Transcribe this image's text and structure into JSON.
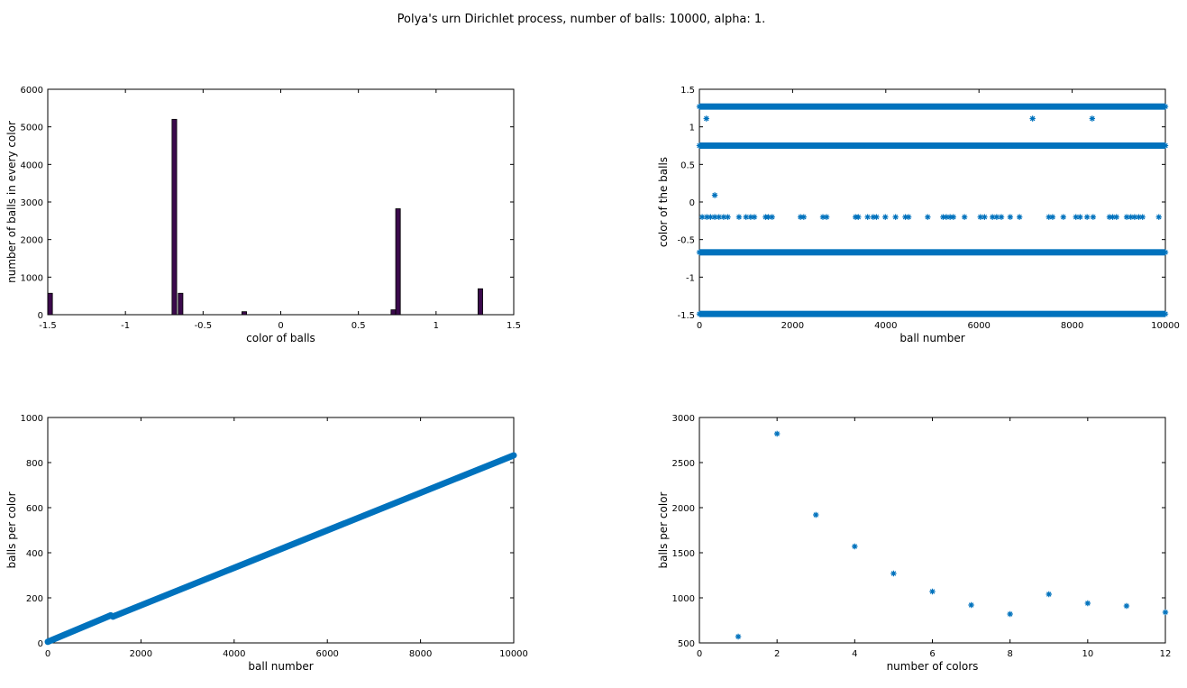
{
  "figure_title": "Polya's urn Dirichlet process, number of balls: 10000, alpha: 1.",
  "colors": {
    "bar": "#3b0a4c",
    "marker": "#0072bd",
    "axis": "#000000"
  },
  "chart_data": [
    {
      "type": "bar",
      "xlabel": "color of balls",
      "ylabel": "number of balls in every color",
      "xlim": [
        -1.5,
        1.5
      ],
      "ylim": [
        0,
        6000
      ],
      "xticks": [
        -1.5,
        -1,
        -0.5,
        0,
        0.5,
        1,
        1.5
      ],
      "xtick_labels": [
        "-1.5",
        "-1",
        "-0.5",
        "0",
        "0.5",
        "1",
        "1.5"
      ],
      "yticks": [
        0,
        1000,
        2000,
        3000,
        4000,
        5000,
        6000
      ],
      "ytick_labels": [
        "0",
        "1000",
        "2000",
        "3000",
        "4000",
        "5000",
        "6000"
      ],
      "bin_width": 0.03,
      "x": [
        -1.485,
        -0.685,
        -0.645,
        -0.235,
        0.725,
        0.755,
        1.285
      ],
      "values": [
        570,
        5200,
        570,
        80,
        130,
        2820,
        690
      ]
    },
    {
      "type": "scatter",
      "xlabel": "ball number",
      "ylabel": "color of the balls",
      "xlim": [
        0,
        10000
      ],
      "ylim": [
        -1.5,
        1.5
      ],
      "xticks": [
        0,
        2000,
        4000,
        6000,
        8000,
        10000
      ],
      "xtick_labels": [
        "0",
        "2000",
        "4000",
        "6000",
        "8000",
        "10000"
      ],
      "yticks": [
        -1.5,
        -1,
        -0.5,
        0,
        0.5,
        1,
        1.5
      ],
      "ytick_labels": [
        "-1.5",
        "-1",
        "-0.5",
        "0",
        "0.5",
        "1",
        "1.5"
      ],
      "bands": [
        {
          "y": 1.27,
          "from": 0,
          "to": 10000
        },
        {
          "y": 0.75,
          "from": 0,
          "to": 10000
        },
        {
          "y": -0.67,
          "from": 0,
          "to": 10000
        },
        {
          "y": -1.49,
          "from": 0,
          "to": 10000
        }
      ],
      "points": [
        [
          150,
          1.11
        ],
        [
          7150,
          1.11
        ],
        [
          8430,
          1.11
        ],
        [
          330,
          0.09
        ],
        [
          60,
          -0.2
        ],
        [
          160,
          -0.2
        ],
        [
          240,
          -0.2
        ],
        [
          330,
          -0.2
        ],
        [
          420,
          -0.2
        ],
        [
          520,
          -0.2
        ],
        [
          610,
          -0.2
        ],
        [
          850,
          -0.2
        ],
        [
          1000,
          -0.2
        ],
        [
          1100,
          -0.2
        ],
        [
          1180,
          -0.2
        ],
        [
          1420,
          -0.2
        ],
        [
          1480,
          -0.2
        ],
        [
          1560,
          -0.2
        ],
        [
          2170,
          -0.2
        ],
        [
          2240,
          -0.2
        ],
        [
          2650,
          -0.2
        ],
        [
          2730,
          -0.2
        ],
        [
          3350,
          -0.2
        ],
        [
          3410,
          -0.2
        ],
        [
          3610,
          -0.2
        ],
        [
          3730,
          -0.2
        ],
        [
          3800,
          -0.2
        ],
        [
          3990,
          -0.2
        ],
        [
          4210,
          -0.2
        ],
        [
          4420,
          -0.2
        ],
        [
          4490,
          -0.2
        ],
        [
          4900,
          -0.2
        ],
        [
          5230,
          -0.2
        ],
        [
          5300,
          -0.2
        ],
        [
          5380,
          -0.2
        ],
        [
          5450,
          -0.2
        ],
        [
          5690,
          -0.2
        ],
        [
          6030,
          -0.2
        ],
        [
          6120,
          -0.2
        ],
        [
          6290,
          -0.2
        ],
        [
          6380,
          -0.2
        ],
        [
          6480,
          -0.2
        ],
        [
          6670,
          -0.2
        ],
        [
          6870,
          -0.2
        ],
        [
          7500,
          -0.2
        ],
        [
          7580,
          -0.2
        ],
        [
          7810,
          -0.2
        ],
        [
          8080,
          -0.2
        ],
        [
          8170,
          -0.2
        ],
        [
          8320,
          -0.2
        ],
        [
          8450,
          -0.2
        ],
        [
          8800,
          -0.2
        ],
        [
          8870,
          -0.2
        ],
        [
          8950,
          -0.2
        ],
        [
          9170,
          -0.2
        ],
        [
          9260,
          -0.2
        ],
        [
          9340,
          -0.2
        ],
        [
          9430,
          -0.2
        ],
        [
          9510,
          -0.2
        ],
        [
          9860,
          -0.2
        ]
      ]
    },
    {
      "type": "scatter",
      "xlabel": "ball number",
      "ylabel": "balls per color",
      "xlim": [
        0,
        10000
      ],
      "ylim": [
        0,
        1000
      ],
      "xticks": [
        0,
        2000,
        4000,
        6000,
        8000,
        10000
      ],
      "xtick_labels": [
        "0",
        "2000",
        "4000",
        "6000",
        "8000",
        "10000"
      ],
      "yticks": [
        0,
        200,
        400,
        600,
        800,
        1000
      ],
      "ytick_labels": [
        "0",
        "200",
        "400",
        "600",
        "800",
        "1000"
      ],
      "line_segments": [
        {
          "x": [
            0,
            1350
          ],
          "y": [
            5,
            122
          ]
        },
        {
          "x": [
            1350,
            1400
          ],
          "y": [
            122,
            117
          ]
        },
        {
          "x": [
            1400,
            10000
          ],
          "y": [
            117,
            832
          ]
        }
      ]
    },
    {
      "type": "scatter",
      "xlabel": "number of colors",
      "ylabel": "balls per color",
      "xlim": [
        0,
        12
      ],
      "ylim": [
        500,
        3000
      ],
      "xticks": [
        0,
        2,
        4,
        6,
        8,
        10,
        12
      ],
      "xtick_labels": [
        "0",
        "2",
        "4",
        "6",
        "8",
        "10",
        "12"
      ],
      "yticks": [
        500,
        1000,
        1500,
        2000,
        2500,
        3000
      ],
      "ytick_labels": [
        "500",
        "1000",
        "1500",
        "2000",
        "2500",
        "3000"
      ],
      "x": [
        1,
        2,
        3,
        4,
        5,
        6,
        7,
        8,
        9,
        10,
        11,
        12
      ],
      "y": [
        570,
        2820,
        1920,
        1570,
        1270,
        1070,
        920,
        820,
        1040,
        940,
        910,
        840
      ]
    }
  ]
}
